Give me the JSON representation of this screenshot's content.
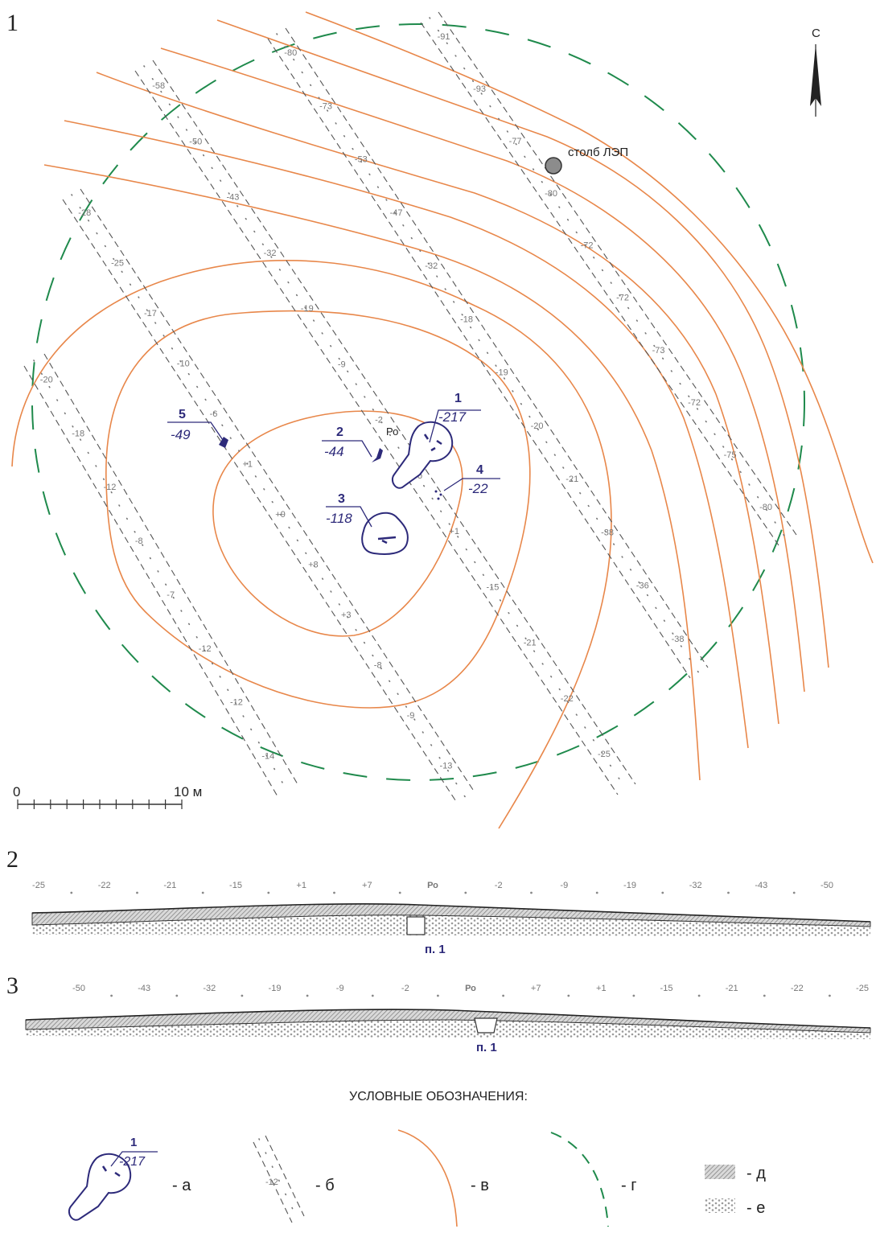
{
  "panels": {
    "plan": "1",
    "profile_a": "2",
    "profile_b": "3"
  },
  "north_label": "С",
  "pole_label": "столб ЛЭП",
  "scale": {
    "start": "0",
    "end": "10 м"
  },
  "features": [
    {
      "num": "1",
      "depth": "-217"
    },
    {
      "num": "2",
      "depth": "-44"
    },
    {
      "num": "3",
      "depth": "-118"
    },
    {
      "num": "4",
      "depth": "-22"
    },
    {
      "num": "5",
      "depth": "-49"
    }
  ],
  "ro_label": "Ро",
  "trenches": [
    [
      "-20",
      "-18",
      "-12",
      "-8",
      "-7",
      "-12",
      "-12",
      "-14"
    ],
    [
      "-28",
      "-25",
      "-17",
      "-10",
      "-6",
      "+1",
      "+9",
      "+8",
      "+3",
      "-8",
      "-9",
      "-13"
    ],
    [
      "-58",
      "-50",
      "-43",
      "-32",
      "-19",
      "-9",
      "-2",
      "Ро",
      "+1",
      "-15",
      "-21",
      "-22",
      "-25"
    ],
    [
      "-80",
      "-73",
      "-53",
      "-47",
      "-32",
      "-18",
      "-19",
      "-20",
      "-21",
      "-38",
      "-36",
      "-38"
    ],
    [
      "-91",
      "-93",
      "-77",
      "-80",
      "-72",
      "-72",
      "-73",
      "-72",
      "-75",
      "-80"
    ]
  ],
  "profile_a_ticks": [
    "-25",
    "-22",
    "-21",
    "-15",
    "+1",
    "+7",
    "Ро",
    "-2",
    "-9",
    "-19",
    "-32",
    "-43",
    "-50"
  ],
  "profile_b_ticks": [
    "-50",
    "-43",
    "-32",
    "-19",
    "-9",
    "-2",
    "Ро",
    "+7",
    "+1",
    "-15",
    "-21",
    "-22",
    "-25"
  ],
  "pit_label": "п. 1",
  "legend": {
    "title": "УСЛОВНЫЕ ОБОЗНАЧЕНИЯ:",
    "a": "- а",
    "b": "- б",
    "v": "- в",
    "g": "- г",
    "d": "- д",
    "e": "- е",
    "sample_num": "1",
    "sample_depth": "-217",
    "sample_tick": "-12"
  },
  "colors": {
    "contour": "#e8874a",
    "boundary": "#1f8a4c",
    "feature": "#2d2a7a",
    "trench": "#555555"
  }
}
